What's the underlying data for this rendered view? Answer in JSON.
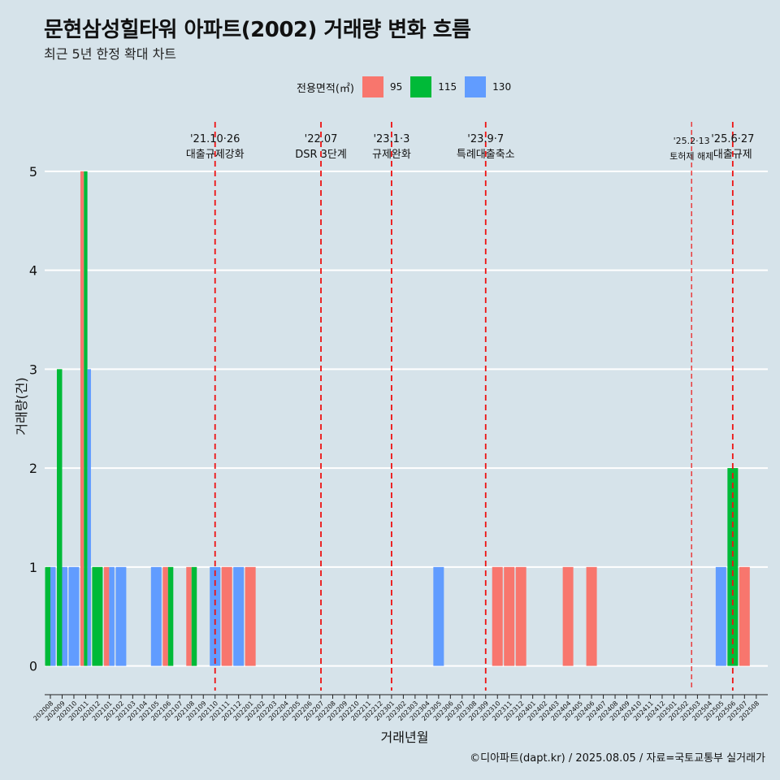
{
  "title": "문현삼성힐타워 아파트(2002) 거래량 변화 흐름",
  "subtitle": "최근 5년 한정 확대 차트",
  "caption": "©디아파트(dapt.kr) / 2025.08.05 / 자료=국토교통부 실거래가",
  "chart_data": {
    "type": "bar",
    "xlabel": "거래년월",
    "ylabel": "거래량(건)",
    "ylim": [
      -0.25,
      5.5
    ],
    "yticks": [
      0,
      1,
      2,
      3,
      4,
      5
    ],
    "legend": {
      "title": "전용면적(㎡)",
      "position": "top",
      "items": [
        {
          "name": "95",
          "color": "#F8766D"
        },
        {
          "name": "115",
          "color": "#00BA38"
        },
        {
          "name": "130",
          "color": "#619CFF"
        }
      ]
    },
    "categories": [
      "202008",
      "202009",
      "202010",
      "202011",
      "202012",
      "202101",
      "202102",
      "202103",
      "202104",
      "202105",
      "202106",
      "202107",
      "202108",
      "202109",
      "202110",
      "202111",
      "202112",
      "202201",
      "202202",
      "202203",
      "202204",
      "202205",
      "202206",
      "202207",
      "202208",
      "202209",
      "202210",
      "202211",
      "202212",
      "202301",
      "202302",
      "202303",
      "202304",
      "202305",
      "202306",
      "202307",
      "202308",
      "202309",
      "202310",
      "202311",
      "202312",
      "202401",
      "202402",
      "202403",
      "202404",
      "202405",
      "202406",
      "202407",
      "202408",
      "202409",
      "202410",
      "202411",
      "202412",
      "202501",
      "202502",
      "202503",
      "202504",
      "202505",
      "202506",
      "202507",
      "202508"
    ],
    "series": [
      {
        "name": "95",
        "color": "#F8766D",
        "values": [
          0,
          0,
          0,
          5,
          0,
          1,
          0,
          0,
          0,
          0,
          1,
          0,
          1,
          0,
          0,
          1,
          0,
          1,
          0,
          0,
          0,
          0,
          0,
          0,
          0,
          0,
          0,
          0,
          0,
          0,
          0,
          0,
          0,
          0,
          0,
          0,
          0,
          0,
          1,
          1,
          1,
          0,
          0,
          0,
          1,
          0,
          1,
          0,
          0,
          0,
          0,
          0,
          0,
          0,
          0,
          0,
          0,
          0,
          0,
          1,
          0
        ]
      },
      {
        "name": "115",
        "color": "#00BA38",
        "values": [
          1,
          3,
          0,
          5,
          1,
          0,
          0,
          0,
          0,
          0,
          1,
          0,
          1,
          0,
          0,
          0,
          0,
          0,
          0,
          0,
          0,
          0,
          0,
          0,
          0,
          0,
          0,
          0,
          0,
          0,
          0,
          0,
          0,
          0,
          0,
          0,
          0,
          0,
          0,
          0,
          0,
          0,
          0,
          0,
          0,
          0,
          0,
          0,
          0,
          0,
          0,
          0,
          0,
          0,
          0,
          0,
          0,
          0,
          2,
          0,
          0
        ]
      },
      {
        "name": "130",
        "color": "#619CFF",
        "values": [
          1,
          1,
          1,
          3,
          0,
          1,
          1,
          0,
          0,
          1,
          0,
          0,
          0,
          0,
          1,
          0,
          1,
          0,
          0,
          0,
          0,
          0,
          0,
          0,
          0,
          0,
          0,
          0,
          0,
          0,
          0,
          0,
          0,
          1,
          0,
          0,
          0,
          0,
          0,
          0,
          0,
          0,
          0,
          0,
          0,
          0,
          0,
          0,
          0,
          0,
          0,
          0,
          0,
          0,
          0,
          0,
          0,
          1,
          0,
          0,
          0
        ]
      }
    ],
    "events": [
      {
        "x": 14.0,
        "date": "'21.10·26",
        "label": "대출규제강화"
      },
      {
        "x": 23.0,
        "date": "'22.07",
        "label": "DSR 3단계"
      },
      {
        "x": 29.0,
        "date": "'23.1·3",
        "label": "규제완화"
      },
      {
        "x": 37.0,
        "date": "'23.9·7",
        "label": "특례대출축소"
      },
      {
        "x": 54.5,
        "date": "'25.2·13",
        "label": "토허제 해제",
        "small": true
      },
      {
        "x": 58.0,
        "date": "'25.6·27",
        "label": "대출규제"
      }
    ]
  }
}
